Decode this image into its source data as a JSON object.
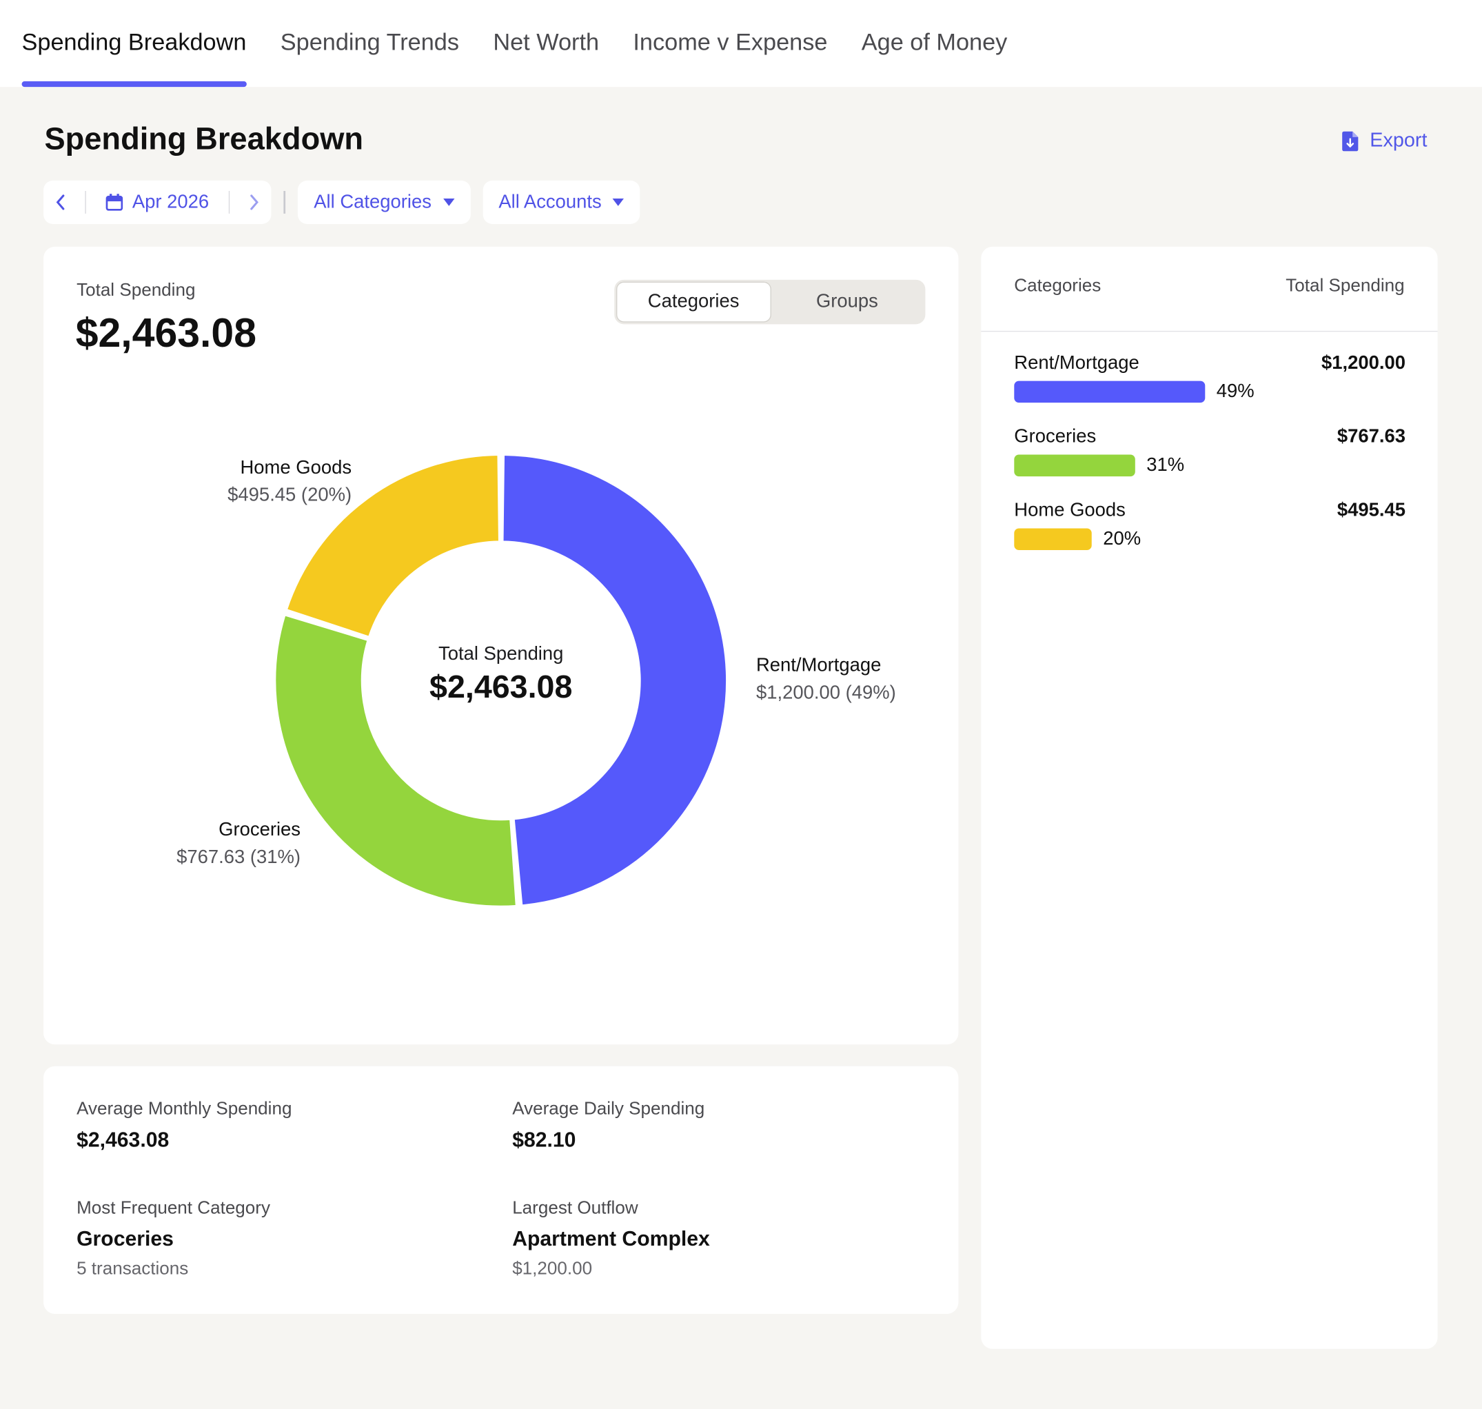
{
  "tabs": [
    {
      "label": "Spending Breakdown",
      "active": true
    },
    {
      "label": "Spending Trends",
      "active": false
    },
    {
      "label": "Net Worth",
      "active": false
    },
    {
      "label": "Income v Expense",
      "active": false
    },
    {
      "label": "Age of Money",
      "active": false
    }
  ],
  "page": {
    "title": "Spending Breakdown",
    "export_label": "Export"
  },
  "filters": {
    "date": "Apr 2026",
    "categories": "All Categories",
    "accounts": "All Accounts"
  },
  "chart_card": {
    "total_label": "Total Spending",
    "total_value": "$2,463.08",
    "toggle": [
      {
        "label": "Categories",
        "active": true
      },
      {
        "label": "Groups",
        "active": false
      }
    ],
    "center_label": "Total Spending",
    "center_value": "$2,463.08"
  },
  "chart_data": {
    "type": "pie",
    "style": "donut",
    "slices": [
      {
        "name": "Rent/Mortgage",
        "value": 1200.0,
        "label": "$1,200.00 (49%)",
        "color": "#5559fb"
      },
      {
        "name": "Groceries",
        "value": 767.63,
        "label": "$767.63 (31%)",
        "color": "#94d53d"
      },
      {
        "name": "Home Goods",
        "value": 495.45,
        "label": "$495.45 (20%)",
        "color": "#f5c91f"
      }
    ]
  },
  "stats": {
    "avg_monthly_label": "Average Monthly Spending",
    "avg_monthly_value": "$2,463.08",
    "avg_daily_label": "Average Daily Spending",
    "avg_daily_value": "$82.10",
    "frequent_label": "Most Frequent Category",
    "frequent_value": "Groceries",
    "frequent_sub": "5 transactions",
    "outflow_label": "Largest Outflow",
    "outflow_value": "Apartment Complex",
    "outflow_sub": "$1,200.00"
  },
  "side": {
    "col1": "Categories",
    "col2": "Total Spending",
    "rows": [
      {
        "name": "Rent/Mortgage",
        "amount": "$1,200.00",
        "pct": "49%",
        "fraction": 0.49,
        "color": "#5559fb"
      },
      {
        "name": "Groceries",
        "amount": "$767.63",
        "pct": "31%",
        "fraction": 0.31,
        "color": "#94d53d"
      },
      {
        "name": "Home Goods",
        "amount": "$495.45",
        "pct": "20%",
        "fraction": 0.2,
        "color": "#f5c91f"
      }
    ]
  },
  "icons": {
    "export": "file-download-icon",
    "calendar": "calendar-icon",
    "prev": "chevron-left-icon",
    "next": "chevron-right-icon",
    "dropdown": "caret-down-icon"
  },
  "colors": {
    "accent": "#5157e8"
  }
}
